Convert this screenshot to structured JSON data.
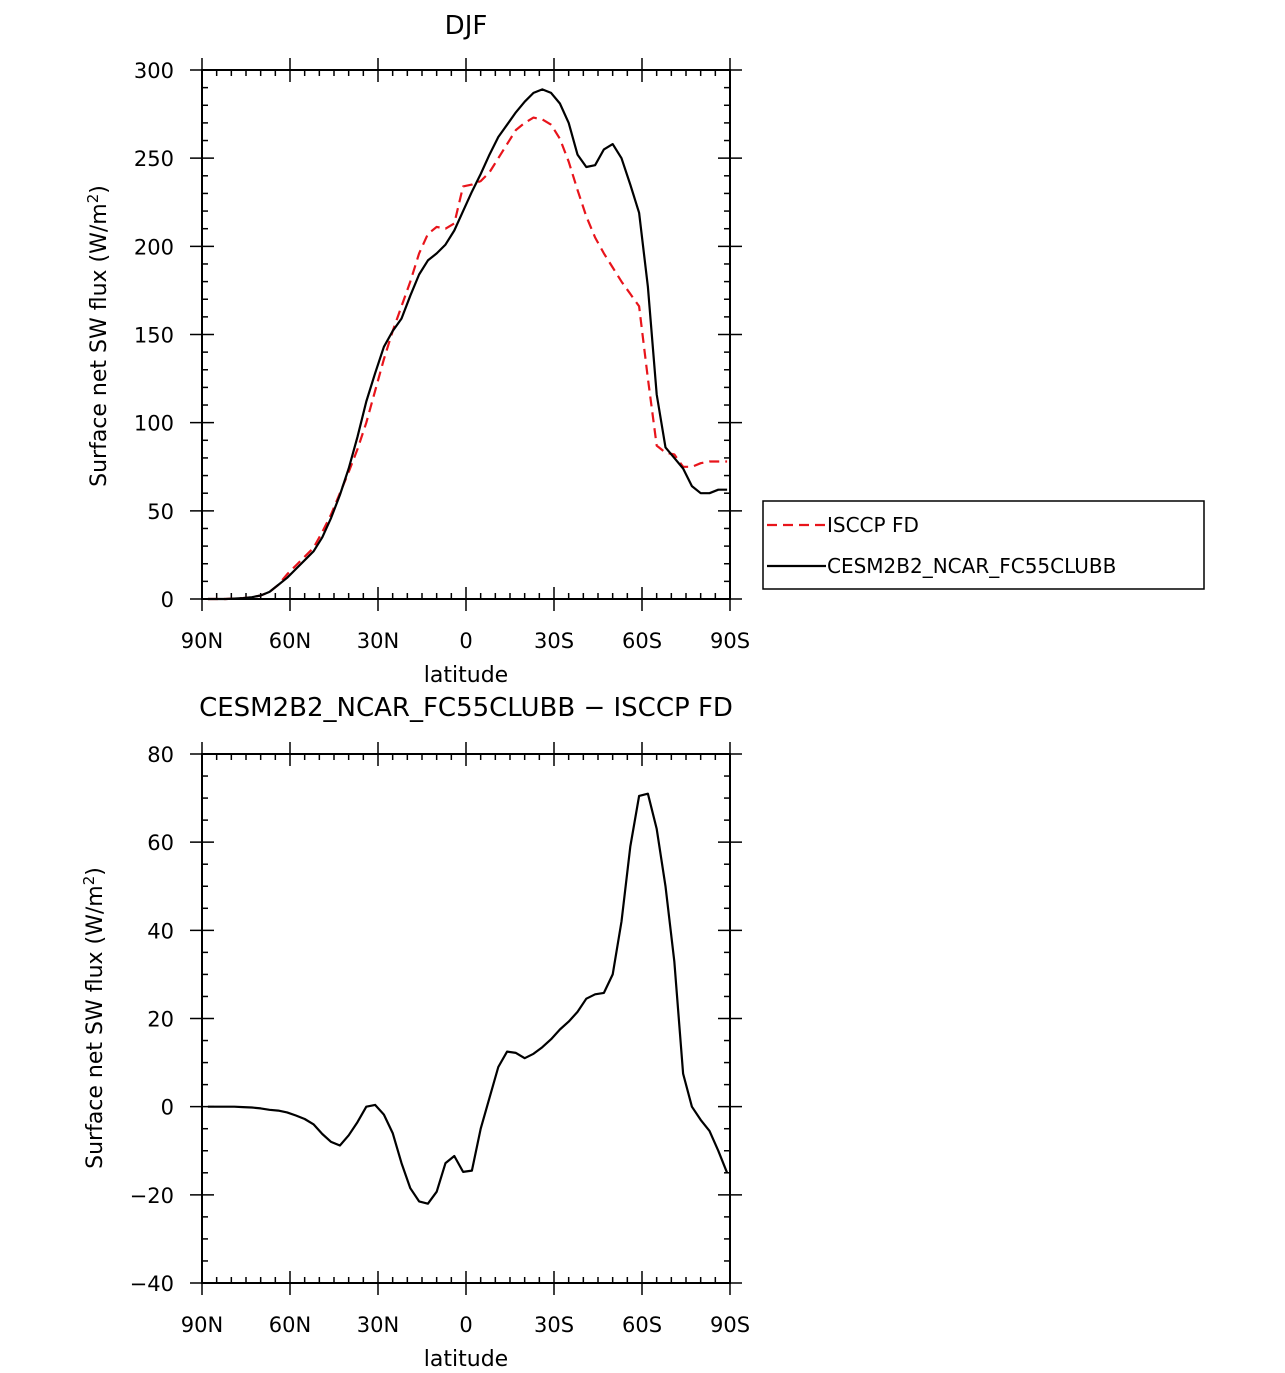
{
  "chart_data": [
    {
      "type": "line",
      "title": "DJF",
      "xlabel": "latitude",
      "ylabel": "Surface net SW flux (W/m",
      "ylabel_sup": "2",
      "ylabel_close": ")",
      "xlim": [
        -90,
        90
      ],
      "ylim": [
        0,
        300
      ],
      "xticks": [
        {
          "value": -90,
          "label": "90N"
        },
        {
          "value": -60,
          "label": "60N"
        },
        {
          "value": -30,
          "label": "30N"
        },
        {
          "value": 0,
          "label": "0"
        },
        {
          "value": 30,
          "label": "30S"
        },
        {
          "value": 60,
          "label": "60S"
        },
        {
          "value": 90,
          "label": "90S"
        }
      ],
      "yticks": [
        0,
        50,
        100,
        150,
        200,
        250,
        300
      ],
      "legend": {
        "position": "right"
      },
      "series": [
        {
          "name": "ISCCP FD",
          "color": "#e8141b",
          "dash": true,
          "x": [
            -88,
            -85,
            -82,
            -79,
            -76,
            -73,
            -70,
            -67,
            -64,
            -61,
            -58,
            -55,
            -52,
            -49,
            -46,
            -43,
            -40,
            -37,
            -34,
            -31,
            -28,
            -25,
            -22,
            -19,
            -16,
            -13,
            -10,
            -7,
            -4,
            -1,
            2,
            5,
            8,
            11,
            14,
            17,
            20,
            23,
            26,
            29,
            32,
            35,
            38,
            41,
            44,
            47,
            50,
            53,
            56,
            59,
            62,
            65,
            68,
            71,
            74,
            77,
            80,
            83,
            86,
            89
          ],
          "y": [
            0,
            0,
            0,
            0.2,
            0.5,
            1,
            2,
            4,
            8,
            14,
            19,
            24,
            29,
            38,
            48,
            60,
            72,
            85,
            100,
            118,
            136,
            152,
            166,
            180,
            196,
            207,
            211,
            210,
            213,
            234,
            235,
            237,
            242,
            250,
            258,
            266,
            270,
            273,
            272,
            269,
            261,
            248,
            232,
            217,
            205,
            196,
            188,
            180,
            173,
            166,
            125,
            87,
            83,
            82,
            75,
            75,
            77,
            78,
            78,
            78
          ]
        },
        {
          "name": "CESM2B2_NCAR_FC55CLUBB",
          "color": "#000000",
          "dash": false,
          "x": [
            -88,
            -85,
            -82,
            -79,
            -76,
            -73,
            -70,
            -67,
            -64,
            -61,
            -58,
            -55,
            -52,
            -49,
            -46,
            -43,
            -40,
            -37,
            -34,
            -31,
            -28,
            -25,
            -22,
            -19,
            -16,
            -13,
            -10,
            -7,
            -4,
            -1,
            2,
            5,
            8,
            11,
            14,
            17,
            20,
            23,
            26,
            29,
            32,
            35,
            38,
            41,
            44,
            47,
            50,
            53,
            56,
            59,
            62,
            65,
            68,
            71,
            74,
            77,
            80,
            83,
            86,
            89
          ],
          "y": [
            0,
            0,
            0,
            0.2,
            0.5,
            1,
            2,
            4,
            8,
            12,
            17,
            22,
            27,
            35,
            46,
            59,
            74,
            92,
            112,
            128,
            143,
            152,
            159,
            172,
            184,
            192,
            196,
            201,
            209,
            220,
            231,
            241,
            252,
            262,
            269,
            276,
            282,
            287,
            289,
            287,
            281,
            270,
            252,
            245,
            246,
            255,
            258,
            250,
            235,
            219,
            177,
            116,
            86,
            80,
            74,
            64,
            60,
            60,
            62,
            62
          ]
        }
      ]
    },
    {
      "type": "line",
      "title": "CESM2B2_NCAR_FC55CLUBB − ISCCP FD",
      "xlabel": "latitude",
      "ylabel": "Surface net SW flux (W/m",
      "ylabel_sup": "2",
      "ylabel_close": ")",
      "xlim": [
        -90,
        90
      ],
      "ylim": [
        -40,
        80
      ],
      "xticks": [
        {
          "value": -90,
          "label": "90N"
        },
        {
          "value": -60,
          "label": "60N"
        },
        {
          "value": -30,
          "label": "30N"
        },
        {
          "value": 0,
          "label": "0"
        },
        {
          "value": 30,
          "label": "30S"
        },
        {
          "value": 60,
          "label": "60S"
        },
        {
          "value": 90,
          "label": "90S"
        }
      ],
      "yticks": [
        -40,
        -20,
        0,
        20,
        40,
        60,
        80
      ],
      "series": [
        {
          "color": "#000000",
          "dash": false,
          "x": [
            -88,
            -85,
            -82,
            -79,
            -76,
            -73,
            -70,
            -67,
            -64,
            -61,
            -58,
            -55,
            -52,
            -49,
            -46,
            -43,
            -40,
            -37,
            -34,
            -31,
            -28,
            -25,
            -22,
            -19,
            -16,
            -13,
            -10,
            -7,
            -4,
            -1,
            2,
            5,
            8,
            11,
            14,
            17,
            20,
            23,
            26,
            29,
            32,
            35,
            38,
            41,
            44,
            47,
            50,
            53,
            56,
            59,
            62,
            65,
            68,
            71,
            74,
            77,
            80,
            83,
            86,
            89
          ],
          "y": [
            0,
            0,
            0,
            0,
            -0.1,
            -0.2,
            -0.4,
            -0.7,
            -0.9,
            -1.3,
            -2,
            -2.8,
            -4,
            -6.2,
            -8,
            -8.8,
            -6.5,
            -3.5,
            0,
            0.4,
            -1.8,
            -6,
            -12.8,
            -18.5,
            -21.5,
            -22,
            -19.3,
            -12.8,
            -11.2,
            -14.8,
            -14.5,
            -5,
            2,
            9,
            12.5,
            12.2,
            11,
            12,
            13.5,
            15.3,
            17.5,
            19.3,
            21.5,
            24.5,
            25.5,
            25.8,
            30,
            42,
            59,
            70.5,
            71,
            63,
            50,
            33,
            7.5,
            0,
            -3,
            -5.5,
            -10,
            -15
          ]
        }
      ]
    }
  ]
}
